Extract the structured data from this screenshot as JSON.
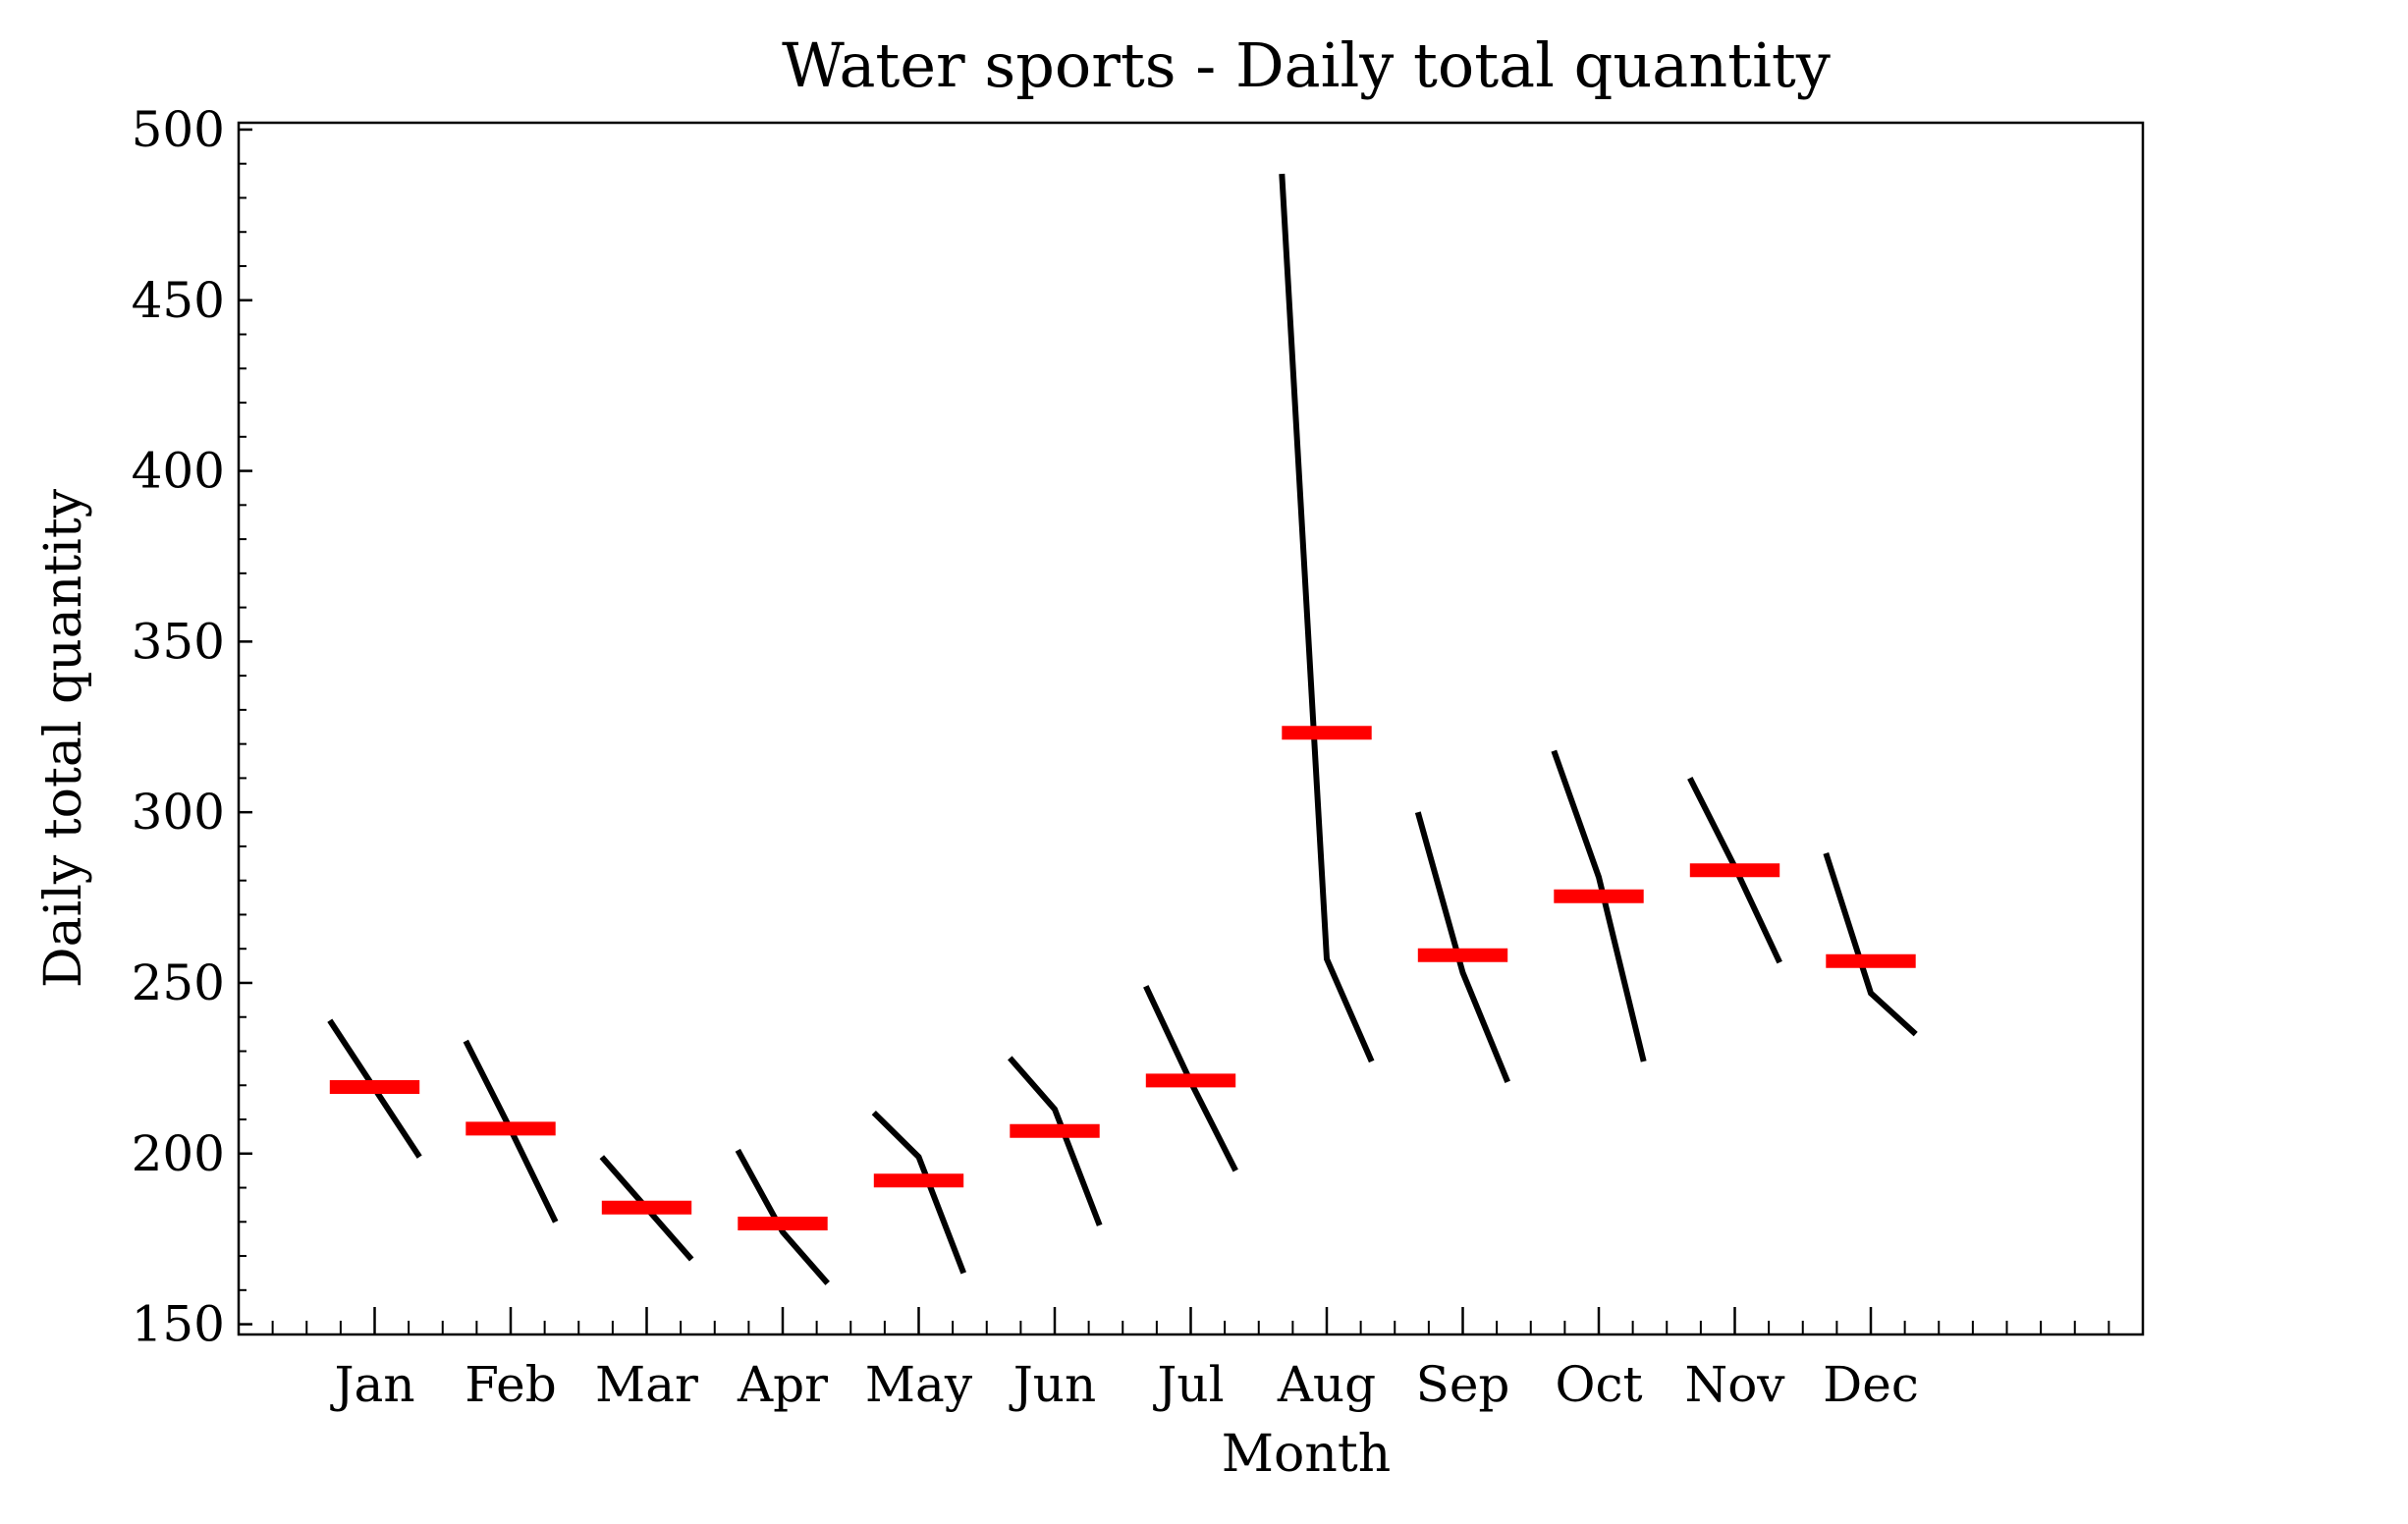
{
  "chart_data": {
    "type": "line",
    "title": "Water sports - Daily total quantity",
    "xlabel": "Month",
    "ylabel": "Daily total quantity",
    "categories": [
      "Jan",
      "Feb",
      "Mar",
      "Apr",
      "May",
      "Jun",
      "Jul",
      "Aug",
      "Sep",
      "Oct",
      "Nov",
      "Dec"
    ],
    "ylim": [
      147,
      502
    ],
    "yticks": [
      150,
      200,
      250,
      300,
      350,
      400,
      450,
      500
    ],
    "grid": false,
    "series": [
      {
        "values": [
          [
            239,
            219,
            199
          ],
          [
            233,
            207,
            180
          ],
          [
            199,
            184,
            169
          ],
          [
            201,
            177,
            162
          ],
          [
            212,
            199,
            165
          ],
          [
            228,
            213,
            179
          ],
          [
            249,
            221,
            195
          ],
          [
            487,
            257,
            227
          ],
          [
            300,
            253,
            221
          ],
          [
            318,
            281,
            227
          ],
          [
            310,
            284,
            256
          ],
          [
            288,
            247,
            235
          ]
        ]
      },
      {
        "values": [
          219.5,
          207.3,
          184.2,
          179.5,
          192.1,
          206.6,
          221.4,
          323.3,
          258.1,
          275.4,
          283.0,
          256.4
        ]
      }
    ],
    "colors": {
      "line": "#000000",
      "mean": "#ff0000"
    }
  }
}
